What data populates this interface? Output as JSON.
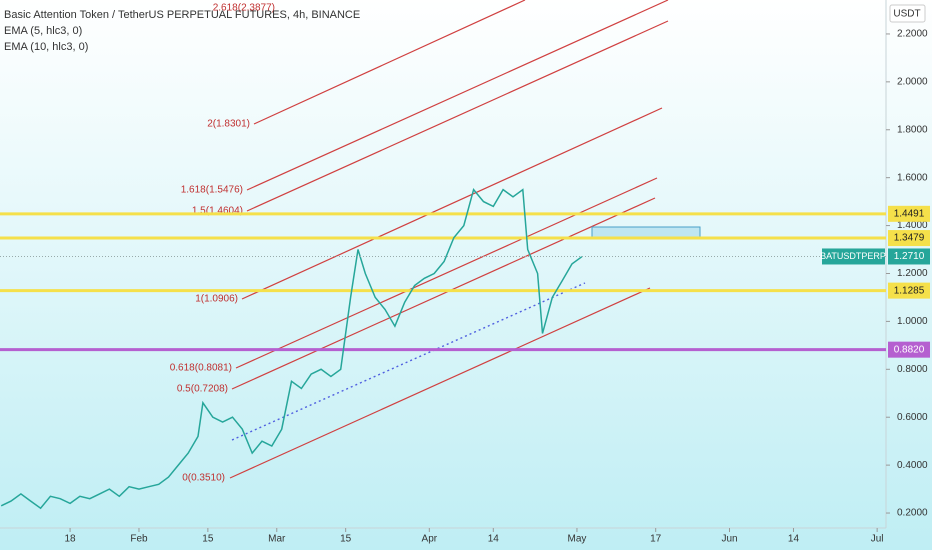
{
  "chart_data": {
    "type": "line",
    "title": "Basic Attention Token / TetherUS PERPETUAL FUTURES, 4h, BINANCE",
    "indicators": [
      "EMA (5, hlc3, 0)",
      "EMA (10, hlc3, 0)"
    ],
    "currency": "USDT",
    "xlim": [
      3.76,
      183.8
    ],
    "xticks": [
      {
        "value": 18,
        "label": "18"
      },
      {
        "value": 32,
        "label": "Feb"
      },
      {
        "value": 46,
        "label": "15"
      },
      {
        "value": 60,
        "label": "Mar"
      },
      {
        "value": 74,
        "label": "15"
      },
      {
        "value": 91,
        "label": "Apr"
      },
      {
        "value": 104,
        "label": "14"
      },
      {
        "value": 121,
        "label": "May"
      },
      {
        "value": 137,
        "label": "17"
      },
      {
        "value": 152,
        "label": "Jun"
      },
      {
        "value": 165,
        "label": "14"
      },
      {
        "value": 182,
        "label": "Jul"
      }
    ],
    "ylim": [
      0.1375,
      2.3417
    ],
    "yticks": [
      {
        "value": 0.2,
        "label": "0.2000"
      },
      {
        "value": 0.4,
        "label": "0.4000"
      },
      {
        "value": 0.6,
        "label": "0.6000"
      },
      {
        "value": 0.8,
        "label": "0.8000"
      },
      {
        "value": 1.0,
        "label": "1.0000"
      },
      {
        "value": 1.2,
        "label": "1.2000"
      },
      {
        "value": 1.4,
        "label": "1.4000"
      },
      {
        "value": 1.6,
        "label": "1.6000"
      },
      {
        "value": 1.8,
        "label": "1.8000"
      },
      {
        "value": 2.0,
        "label": "2.0000"
      },
      {
        "value": 2.2,
        "label": "2.2000"
      }
    ],
    "series": [
      {
        "name": "BATUSDTPERP",
        "color": "#26a69a",
        "x": [
          4,
          6,
          8,
          10,
          12,
          14,
          16,
          18,
          20,
          22,
          24,
          26,
          28,
          30,
          32,
          34,
          36,
          38,
          40,
          42,
          44,
          45,
          47,
          49,
          51,
          53,
          55,
          57,
          59,
          61,
          63,
          65,
          67,
          69,
          71,
          73,
          75,
          76.5,
          78,
          80,
          82,
          84,
          86,
          88,
          90,
          92,
          94,
          96,
          98,
          100,
          102,
          104,
          106,
          108,
          110,
          111,
          113,
          114,
          116,
          118,
          120,
          122
        ],
        "values": [
          0.23,
          0.25,
          0.28,
          0.25,
          0.22,
          0.27,
          0.26,
          0.24,
          0.27,
          0.26,
          0.28,
          0.3,
          0.27,
          0.31,
          0.3,
          0.31,
          0.32,
          0.35,
          0.4,
          0.45,
          0.52,
          0.66,
          0.6,
          0.58,
          0.6,
          0.55,
          0.45,
          0.5,
          0.48,
          0.55,
          0.75,
          0.72,
          0.78,
          0.8,
          0.77,
          0.8,
          1.1,
          1.3,
          1.2,
          1.1,
          1.05,
          0.98,
          1.08,
          1.15,
          1.18,
          1.2,
          1.25,
          1.35,
          1.4,
          1.55,
          1.5,
          1.48,
          1.55,
          1.52,
          1.55,
          1.3,
          1.2,
          0.95,
          1.1,
          1.17,
          1.24,
          1.27
        ]
      }
    ],
    "levels": [
      {
        "value": 1.4491,
        "label": "1.4491",
        "color": "#f5e04a"
      },
      {
        "value": 1.3479,
        "label": "1.3479",
        "color": "#f5e04a"
      },
      {
        "value": 1.1285,
        "label": "1.1285",
        "color": "#f5e04a"
      },
      {
        "value": 0.882,
        "label": "0.8820",
        "color": "#b55fd0"
      }
    ],
    "last_price": {
      "name": "BATUSDTPERP",
      "value": 1.271,
      "label": "1.2710",
      "color": "#26a69a"
    },
    "annotations": [
      "2.618(2.3877)",
      "2(1.8301)",
      "1.618(1.5476)",
      "1.5(1.4604)",
      "1(1.0906)",
      "0.618(0.8081)",
      "0.5(0.7208)",
      "0(0.3510)"
    ]
  }
}
